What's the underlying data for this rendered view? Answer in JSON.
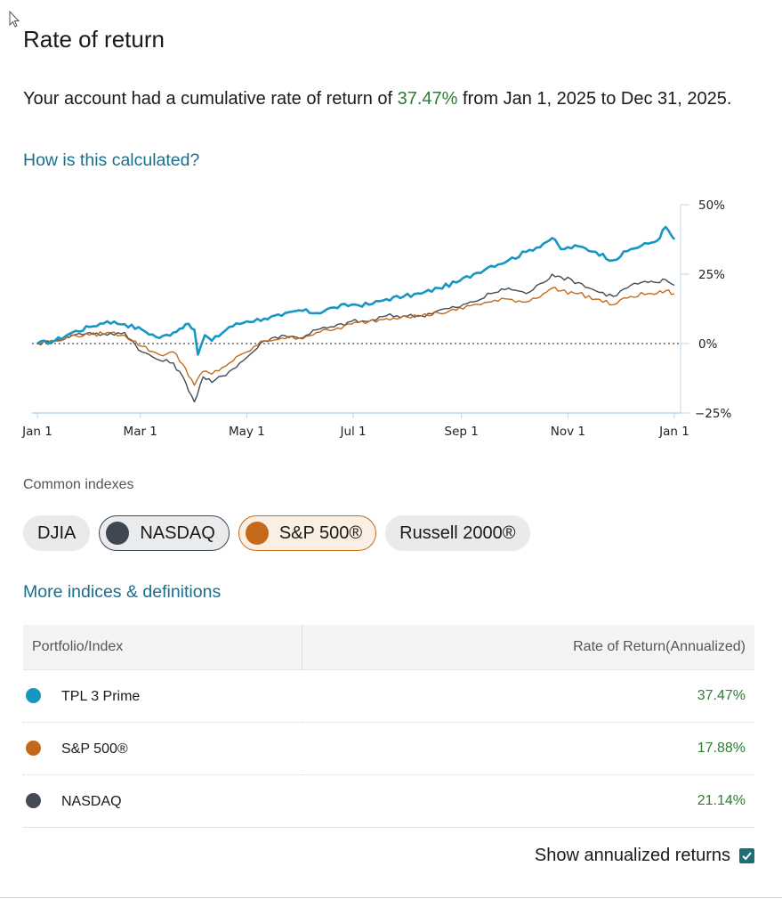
{
  "title": "Rate of return",
  "summary": {
    "prefix": "Your account had a cumulative rate of return of ",
    "percent": "37.47%",
    "suffix": " from Jan 1, 2025 to Dec 31, 2025."
  },
  "how_link": "How is this calculated?",
  "chart_data": {
    "type": "line",
    "title": "",
    "x_ticks": [
      "Jan 1",
      "Mar 1",
      "May 1",
      "Jul 1",
      "Sep 1",
      "Nov 1",
      "Jan 1"
    ],
    "y_ticks": [
      "50%",
      "25%",
      "0%",
      "−25%"
    ],
    "ylim": [
      -25,
      50
    ],
    "x_range_days": [
      0,
      365
    ],
    "baseline": 0,
    "series": [
      {
        "name": "TPL 3 Prime",
        "color": "#1796c4",
        "stroke_width": 2.6,
        "points": [
          [
            0,
            0
          ],
          [
            10,
            1
          ],
          [
            20,
            4
          ],
          [
            30,
            6
          ],
          [
            40,
            8
          ],
          [
            50,
            7
          ],
          [
            60,
            5
          ],
          [
            70,
            2
          ],
          [
            78,
            4
          ],
          [
            85,
            7
          ],
          [
            90,
            5
          ],
          [
            92,
            -4
          ],
          [
            96,
            3
          ],
          [
            100,
            1
          ],
          [
            110,
            6
          ],
          [
            120,
            8
          ],
          [
            130,
            9
          ],
          [
            140,
            10
          ],
          [
            150,
            12
          ],
          [
            160,
            11
          ],
          [
            170,
            13
          ],
          [
            180,
            14
          ],
          [
            190,
            14
          ],
          [
            200,
            16
          ],
          [
            210,
            17
          ],
          [
            220,
            18
          ],
          [
            230,
            20
          ],
          [
            240,
            22
          ],
          [
            250,
            25
          ],
          [
            260,
            28
          ],
          [
            270,
            30
          ],
          [
            280,
            33
          ],
          [
            290,
            36
          ],
          [
            295,
            38
          ],
          [
            300,
            34
          ],
          [
            310,
            35
          ],
          [
            320,
            33
          ],
          [
            330,
            30
          ],
          [
            340,
            34
          ],
          [
            350,
            36
          ],
          [
            355,
            37
          ],
          [
            360,
            42
          ],
          [
            365,
            37.5
          ]
        ]
      },
      {
        "name": "NASDAQ",
        "color": "#434b54",
        "stroke_width": 1.4,
        "points": [
          [
            0,
            0
          ],
          [
            10,
            1
          ],
          [
            20,
            3
          ],
          [
            30,
            4
          ],
          [
            40,
            3
          ],
          [
            50,
            4
          ],
          [
            60,
            -3
          ],
          [
            70,
            -6
          ],
          [
            78,
            -7
          ],
          [
            85,
            -14
          ],
          [
            90,
            -21
          ],
          [
            95,
            -12
          ],
          [
            100,
            -14
          ],
          [
            110,
            -10
          ],
          [
            120,
            -5
          ],
          [
            130,
            1
          ],
          [
            140,
            3
          ],
          [
            150,
            2
          ],
          [
            160,
            5
          ],
          [
            170,
            6
          ],
          [
            180,
            8
          ],
          [
            190,
            8
          ],
          [
            200,
            10
          ],
          [
            210,
            10
          ],
          [
            220,
            10
          ],
          [
            230,
            12
          ],
          [
            240,
            13
          ],
          [
            250,
            15
          ],
          [
            260,
            18
          ],
          [
            270,
            20
          ],
          [
            280,
            18
          ],
          [
            290,
            22
          ],
          [
            295,
            25
          ],
          [
            300,
            24
          ],
          [
            310,
            22
          ],
          [
            320,
            19
          ],
          [
            330,
            17
          ],
          [
            340,
            21
          ],
          [
            350,
            22
          ],
          [
            355,
            22
          ],
          [
            360,
            23
          ],
          [
            365,
            21
          ]
        ]
      },
      {
        "name": "S&P 500®",
        "color": "#c4691b",
        "stroke_width": 1.4,
        "points": [
          [
            0,
            0
          ],
          [
            10,
            1
          ],
          [
            20,
            3
          ],
          [
            30,
            3
          ],
          [
            40,
            4
          ],
          [
            50,
            3
          ],
          [
            60,
            -1
          ],
          [
            70,
            -4
          ],
          [
            78,
            -3
          ],
          [
            85,
            -9
          ],
          [
            90,
            -15
          ],
          [
            95,
            -10
          ],
          [
            100,
            -11
          ],
          [
            110,
            -7
          ],
          [
            120,
            -3
          ],
          [
            130,
            1
          ],
          [
            140,
            2
          ],
          [
            150,
            2
          ],
          [
            160,
            4
          ],
          [
            170,
            5
          ],
          [
            180,
            7
          ],
          [
            190,
            8
          ],
          [
            200,
            9
          ],
          [
            210,
            10
          ],
          [
            220,
            10
          ],
          [
            230,
            11
          ],
          [
            240,
            12
          ],
          [
            250,
            14
          ],
          [
            260,
            15
          ],
          [
            270,
            16
          ],
          [
            280,
            15
          ],
          [
            290,
            18
          ],
          [
            295,
            20
          ],
          [
            300,
            19
          ],
          [
            310,
            18
          ],
          [
            320,
            16
          ],
          [
            330,
            14
          ],
          [
            340,
            17
          ],
          [
            350,
            18
          ],
          [
            355,
            18
          ],
          [
            360,
            19
          ],
          [
            365,
            17.9
          ]
        ]
      }
    ]
  },
  "common_label": "Common indexes",
  "chips": [
    {
      "label": "DJIA",
      "selected": false
    },
    {
      "label": "NASDAQ",
      "selected": true,
      "color": "#3f4750"
    },
    {
      "label": "S&P 500®",
      "selected": true,
      "color": "#c46a1a"
    },
    {
      "label": "Russell 2000®",
      "selected": false
    }
  ],
  "more_link": "More indices & definitions",
  "table": {
    "col1": "Portfolio/Index",
    "col2": "Rate of Return(Annualized)",
    "rows": [
      {
        "name": "TPL 3 Prime",
        "value": "37.47%",
        "color": "#1796c4"
      },
      {
        "name": "S&P 500®",
        "value": "17.88%",
        "color": "#c4691b"
      },
      {
        "name": "NASDAQ",
        "value": "21.14%",
        "color": "#434b54"
      }
    ]
  },
  "annualized_label": "Show annualized returns",
  "annualized_checked": true
}
